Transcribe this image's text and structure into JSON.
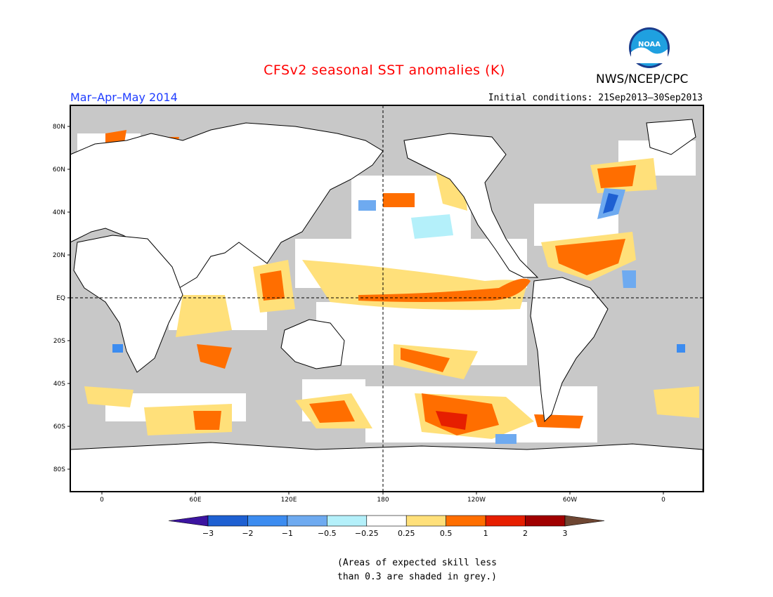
{
  "header": {
    "title": "CFSv2 seasonal SST anomalies (K)",
    "agency": "NWS/NCEP/CPC",
    "logo_text": "NOAA",
    "season": "Mar–Apr–May 2014",
    "initial_conditions": "Initial conditions: 21Sep2013–30Sep2013"
  },
  "map": {
    "lat_labels": [
      "80N",
      "60N",
      "40N",
      "20N",
      "EQ",
      "20S",
      "40S",
      "60S",
      "80S"
    ],
    "lon_labels": [
      "0",
      "60E",
      "120E",
      "180",
      "120W",
      "60W",
      "0"
    ],
    "colors": {
      "land": "#ffffff",
      "skill_mask": "#c8c8c8",
      "frame": "#000000"
    }
  },
  "colorbar": {
    "labels": [
      "−3",
      "−2",
      "−1",
      "−0.5",
      "−0.25",
      "0.25",
      "0.5",
      "1",
      "2",
      "3"
    ],
    "colors": [
      "#3c14a0",
      "#1e60d2",
      "#3c8cf0",
      "#6eaaf0",
      "#b4f0fa",
      "#ffffff",
      "#ffe07a",
      "#ff6e00",
      "#e61e00",
      "#a00000",
      "#6e4632"
    ]
  },
  "note": {
    "line1": "(Areas of expected skill less",
    "line2": "than 0.3 are shaded in grey.)"
  },
  "chart_data": {
    "type": "heatmap",
    "title": "CFSv2 seasonal SST anomalies (K)",
    "units": "K",
    "levels": [
      -3,
      -2,
      -1,
      -0.5,
      -0.25,
      0.25,
      0.5,
      1,
      2,
      3
    ],
    "ylim": [
      -90,
      90
    ],
    "xlim": [
      -20,
      380
    ]
  }
}
